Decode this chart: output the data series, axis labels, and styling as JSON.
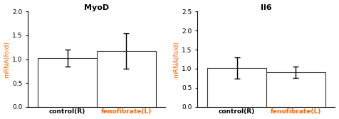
{
  "panels": [
    {
      "title": "MyoD",
      "title_color": "#000000",
      "ylabel": "mRNA(fold)",
      "ylabel_color": "#ff6600",
      "ylim": [
        0,
        2.0
      ],
      "yticks": [
        0.0,
        0.5,
        1.0,
        1.5,
        2.0
      ],
      "ytick_labels": [
        "0.0",
        "0.5",
        "1.0",
        "1.5",
        "2.0"
      ],
      "categories": [
        "control(R)",
        "fenofibrate(L)"
      ],
      "cat_colors": [
        "#000000",
        "#ff6600"
      ],
      "values": [
        1.02,
        1.17
      ],
      "errors": [
        0.18,
        0.37
      ],
      "bar_color": "white",
      "bar_edgecolor": "#333333"
    },
    {
      "title": "Il6",
      "title_color": "#000000",
      "ylabel": "mRNA(fold)",
      "ylabel_color": "#ff6600",
      "ylim": [
        0,
        2.5
      ],
      "yticks": [
        0.0,
        0.5,
        1.0,
        1.5,
        2.0,
        2.5
      ],
      "ytick_labels": [
        "0.0",
        "0.5",
        "1.0",
        "1.5",
        "2.0",
        "2.5"
      ],
      "categories": [
        "control(R)",
        "fenofibrate(L)"
      ],
      "cat_colors": [
        "#000000",
        "#ff6600"
      ],
      "values": [
        1.02,
        0.9
      ],
      "errors": [
        0.28,
        0.15
      ],
      "bar_color": "white",
      "bar_edgecolor": "#333333"
    }
  ],
  "bar_width": 0.45,
  "bar_positions": [
    0.3,
    0.75
  ],
  "figsize": [
    4.76,
    1.68
  ],
  "dpi": 100
}
